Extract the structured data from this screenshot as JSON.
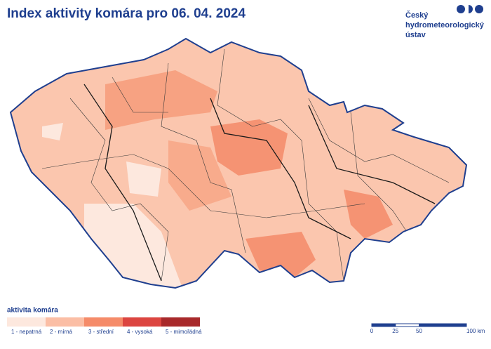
{
  "header": {
    "title": "Index aktivity komára pro 06. 04. 2024"
  },
  "logo": {
    "lines": [
      "Český",
      "hydrometeorologický",
      "ústav"
    ]
  },
  "legend": {
    "title": "aktivita komára",
    "items": [
      {
        "label": "1 - nepatrná",
        "color": "#fde8de"
      },
      {
        "label": "2 - mírná",
        "color": "#fbbea5"
      },
      {
        "label": "3 - střední",
        "color": "#f58b69"
      },
      {
        "label": "4 - vysoká",
        "color": "#dc4540"
      },
      {
        "label": "5 - mimořádná",
        "color": "#a8292b"
      }
    ]
  },
  "scale_bar": {
    "ticks": [
      0,
      25,
      50,
      {
        "value": 100,
        "label": "100 km"
      }
    ]
  }
}
